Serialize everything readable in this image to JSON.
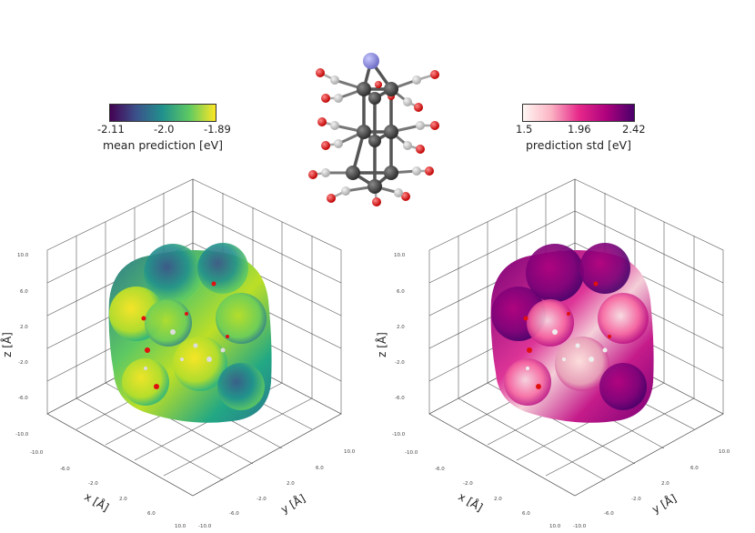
{
  "molecule": {
    "atom_colors": {
      "metal": "#8f8fe0",
      "carbon": "#3e3e3e",
      "oxygen": "#e01010",
      "hydrogen": "#c6c6c6"
    }
  },
  "left_panel": {
    "colorbar": {
      "title": "mean prediction [eV]",
      "ticks": [
        "-2.11",
        "-2.0",
        "-1.89"
      ],
      "range": [
        -2.11,
        -1.89
      ],
      "colors": [
        "#440154",
        "#3b528b",
        "#21918c",
        "#5ec962",
        "#fde725"
      ],
      "colormap": "viridis"
    },
    "axes": {
      "xlabel": "x [Å]",
      "ylabel": "y [Å]",
      "zlabel": "z [Å]",
      "z_ticks": [
        "10.0",
        "6.0",
        "2.0",
        "-2.0",
        "-6.0",
        "-10.0"
      ],
      "x_ticks": [
        "-10.0",
        "-6.0",
        "-2.0",
        "2.0",
        "6.0",
        "10.0"
      ],
      "y_ticks": [
        "10.0",
        "6.0",
        "2.0",
        "-2.0",
        "-6.0",
        "-10.0"
      ]
    }
  },
  "right_panel": {
    "colorbar": {
      "title": "prediction std [eV]",
      "ticks": [
        "1.5",
        "1.96",
        "2.42"
      ],
      "range": [
        1.5,
        2.42
      ],
      "colors": [
        "#fff7f3",
        "#fbb4c4",
        "#e7298a",
        "#ae017e",
        "#49006a"
      ],
      "colormap": "RdPu"
    },
    "axes": {
      "xlabel": "x [Å]",
      "ylabel": "y [Å]",
      "zlabel": "z [Å]",
      "z_ticks": [
        "10.0",
        "6.0",
        "2.0",
        "-2.0",
        "-6.0",
        "-10.0"
      ],
      "x_ticks": [
        "-10.0",
        "-6.0",
        "-2.0",
        "2.0",
        "6.0",
        "10.0"
      ],
      "y_ticks": [
        "10.0",
        "6.0",
        "2.0",
        "-2.0",
        "-6.0",
        "-10.0"
      ]
    }
  }
}
